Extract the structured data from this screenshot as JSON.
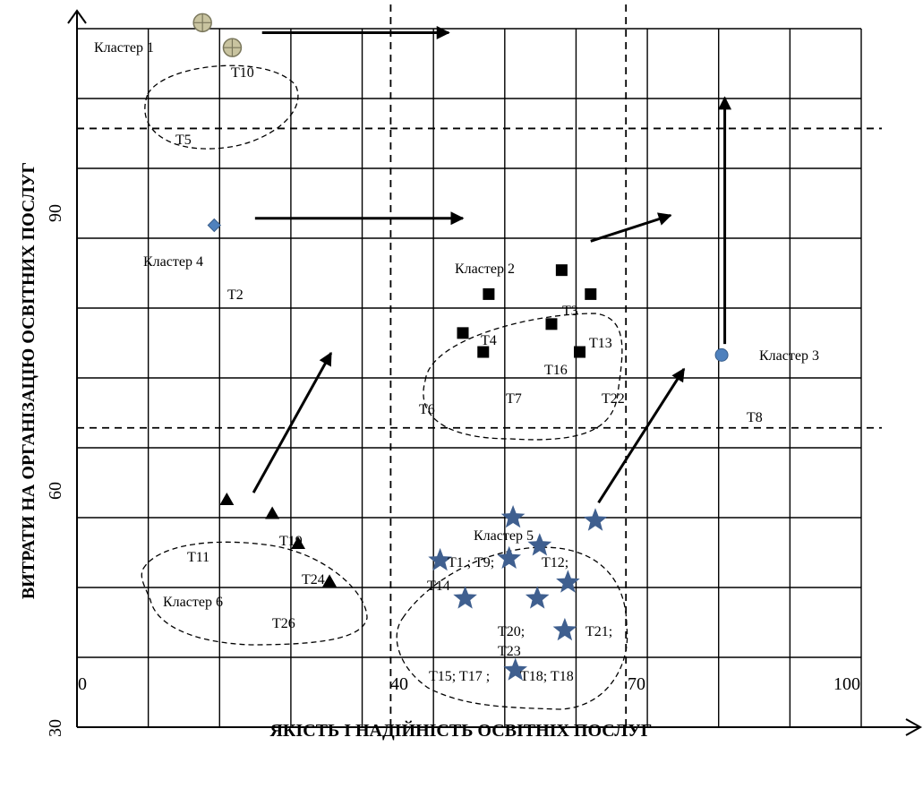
{
  "chart_data": {
    "type": "scatter",
    "xlabel": "ЯКІСТЬ І НАДІЙНІСТЬ ОСВІТНІХ ПОСЛУГ",
    "ylabel": "ВИТРАТИ НА ОРГАНІЗАЦІЮ ОСВІТНИХ ПОСЛУГ",
    "xlim": [
      0,
      100
    ],
    "ylim": [
      30,
      100
    ],
    "x_ticks": [
      "0",
      "40",
      "70",
      "100"
    ],
    "x_tick_values": [
      0,
      40,
      70,
      100
    ],
    "y_ticks": [
      "30",
      "60",
      "90"
    ],
    "y_tick_values": [
      30,
      60,
      90
    ],
    "grid": true,
    "thresholds": {
      "x": [
        40,
        70
      ],
      "y": [
        60,
        90
      ]
    },
    "clusters": [
      {
        "name": "Кластер 1",
        "marker": "circle-cross",
        "color": "#c9c4a0",
        "labels": [
          "T10",
          "T5"
        ]
      },
      {
        "name": "Кластер 2",
        "marker": "square",
        "color": "#000000",
        "labels": [
          "T3",
          "T4",
          "T13",
          "T16",
          "T6",
          "T7",
          "T22"
        ]
      },
      {
        "name": "Кластер 3",
        "marker": "circle",
        "color": "#4f81bd",
        "labels": [
          "T8"
        ]
      },
      {
        "name": "Кластер 4",
        "marker": "diamond",
        "color": "#4f81bd",
        "labels": [
          "T2"
        ]
      },
      {
        "name": "Кластер 5",
        "marker": "star",
        "color": "#3f5f8f",
        "labels": [
          "T1 ; T9;",
          "T12;",
          "T14",
          "T20;",
          "T23",
          "T21;",
          "T15; T17 ;",
          "T18; T18"
        ]
      },
      {
        "name": "Кластер 6",
        "marker": "triangle",
        "color": "#000000",
        "labels": [
          "T11",
          "T19",
          "T24",
          "T26"
        ]
      }
    ],
    "points": [
      {
        "cluster": "Кластер 1",
        "marker": "circle-cross",
        "x": 16,
        "y": 100.6
      },
      {
        "cluster": "Кластер 1",
        "marker": "circle-cross",
        "x": 19.8,
        "y": 98.1
      },
      {
        "cluster": "Кластер 4",
        "marker": "diamond",
        "x": 17.5,
        "y": 80.3
      },
      {
        "cluster": "Кластер 2",
        "marker": "square",
        "x": 61.8,
        "y": 75.8
      },
      {
        "cluster": "Кластер 2",
        "marker": "square",
        "x": 52.5,
        "y": 73.4
      },
      {
        "cluster": "Кластер 2",
        "marker": "square",
        "x": 65.5,
        "y": 73.4
      },
      {
        "cluster": "Кластер 2",
        "marker": "square",
        "x": 60.5,
        "y": 70.4
      },
      {
        "cluster": "Кластер 2",
        "marker": "square",
        "x": 49.2,
        "y": 69.5
      },
      {
        "cluster": "Кластер 2",
        "marker": "square",
        "x": 51.8,
        "y": 67.6
      },
      {
        "cluster": "Кластер 2",
        "marker": "square",
        "x": 64.1,
        "y": 67.6
      },
      {
        "cluster": "Кластер 3",
        "marker": "circle",
        "x": 82.2,
        "y": 67.3
      },
      {
        "cluster": "Кластер 6",
        "marker": "triangle",
        "x": 19.1,
        "y": 52.8
      },
      {
        "cluster": "Кластер 6",
        "marker": "triangle",
        "x": 24.9,
        "y": 51.4
      },
      {
        "cluster": "Кластер 6",
        "marker": "triangle",
        "x": 28.2,
        "y": 48.4
      },
      {
        "cluster": "Кластер 6",
        "marker": "triangle",
        "x": 32.2,
        "y": 44.6
      },
      {
        "cluster": "Кластер 5",
        "marker": "star",
        "x": 55.6,
        "y": 51.0
      },
      {
        "cluster": "Кластер 5",
        "marker": "star",
        "x": 66.1,
        "y": 50.7
      },
      {
        "cluster": "Кластер 5",
        "marker": "star",
        "x": 59.0,
        "y": 48.2
      },
      {
        "cluster": "Кластер 5",
        "marker": "star",
        "x": 55.1,
        "y": 46.9
      },
      {
        "cluster": "Кластер 5",
        "marker": "star",
        "x": 46.3,
        "y": 46.7
      },
      {
        "cluster": "Кластер 5",
        "marker": "star",
        "x": 62.6,
        "y": 44.5
      },
      {
        "cluster": "Кластер 5",
        "marker": "star",
        "x": 49.5,
        "y": 42.9
      },
      {
        "cluster": "Кластер 5",
        "marker": "star",
        "x": 58.7,
        "y": 42.9
      },
      {
        "cluster": "Кластер 5",
        "marker": "star",
        "x": 62.2,
        "y": 39.7
      },
      {
        "cluster": "Кластер 5",
        "marker": "star",
        "x": 55.9,
        "y": 35.7
      }
    ],
    "arrows": [
      {
        "from": [
          23.6,
          99.6
        ],
        "to": [
          47.4,
          99.6
        ]
      },
      {
        "from": [
          22.7,
          81.0
        ],
        "to": [
          49.2,
          81.0
        ]
      },
      {
        "from": [
          65.5,
          78.7
        ],
        "to": [
          75.7,
          81.3
        ]
      },
      {
        "from": [
          82.6,
          68.4
        ],
        "to": [
          82.6,
          93.1
        ]
      },
      {
        "from": [
          22.5,
          53.5
        ],
        "to": [
          32.4,
          67.5
        ]
      },
      {
        "from": [
          66.5,
          52.5
        ],
        "to": [
          77.4,
          65.9
        ]
      }
    ]
  }
}
